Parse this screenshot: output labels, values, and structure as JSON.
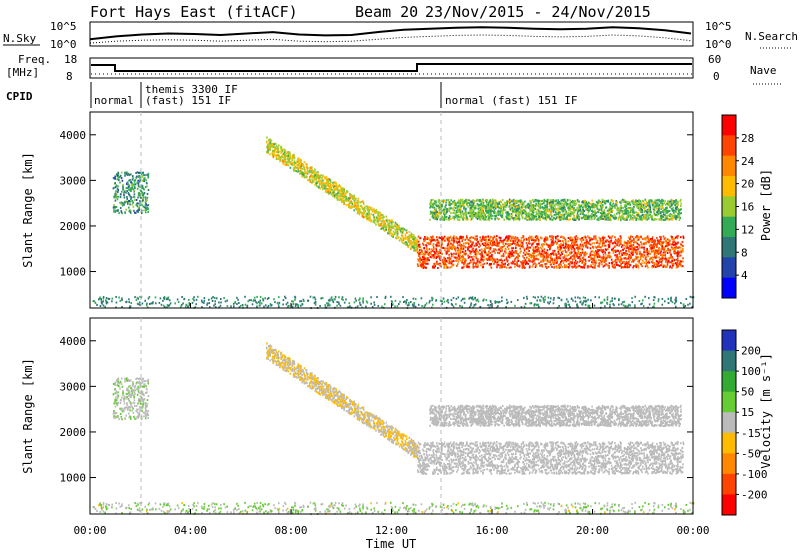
{
  "header": {
    "station": "Fort Hays East (fitACF)",
    "beam": "Beam 20",
    "dates": "23/Nov/2015 - 24/Nov/2015"
  },
  "noise_panel": {
    "left_label": "N.Sky",
    "left_ticks": [
      "10^5",
      "10^0"
    ],
    "right_ticks": [
      "10^5",
      "10^0"
    ],
    "right_label": "N.Search",
    "series": {
      "sky": [
        1.4,
        2.0,
        2.4,
        2.6,
        2.5,
        2.3,
        2.6,
        2.9,
        2.4,
        2.2,
        2.3,
        2.9,
        3.4,
        3.6,
        3.8,
        3.9,
        3.8,
        3.6,
        3.5,
        3.6,
        3.9,
        3.7,
        3.3,
        2.6
      ],
      "search": [
        0.6,
        1.0,
        1.2,
        1.3,
        1.2,
        1.0,
        1.2,
        1.4,
        1.0,
        0.9,
        1.0,
        1.4,
        1.8,
        2.0,
        2.2,
        2.3,
        2.2,
        2.0,
        1.9,
        2.0,
        2.3,
        2.1,
        1.7,
        1.1
      ]
    }
  },
  "freq_panel": {
    "left_label_1": "Freq.",
    "left_label_2": "[MHz]",
    "left_ticks": [
      "18",
      "8"
    ],
    "right_ticks": [
      "60",
      "0"
    ],
    "right_label": "Nave"
  },
  "cpid": {
    "label": "CPID",
    "segments": [
      "normal",
      "themis 3300 IF",
      "(fast) 151 IF",
      "normal (fast) 151 IF"
    ]
  },
  "panel_power": {
    "ylabel": "Slant Range [km]",
    "yticks": [
      "4000",
      "3000",
      "2000",
      "1000"
    ],
    "colorbar_label": "Power [dB]",
    "colorbar_ticks": [
      "28",
      "24",
      "20",
      "16",
      "12",
      "8",
      "4"
    ],
    "colors": [
      "#ff0000",
      "#ff4400",
      "#ff8800",
      "#ffbb00",
      "#99cc33",
      "#33aa55",
      "#2f7777",
      "#2244aa",
      "#0000ff"
    ]
  },
  "panel_velocity": {
    "ylabel": "Slant Range [km]",
    "yticks": [
      "4000",
      "3000",
      "2000",
      "1000"
    ],
    "colorbar_label": "Velocity [m s⁻¹]",
    "colorbar_ticks": [
      "200",
      "100",
      "50",
      "15",
      "-15",
      "-50",
      "-100",
      "-200"
    ],
    "colors": [
      "#2233bb",
      "#2f7777",
      "#33aa33",
      "#66cc33",
      "#bbbbbb",
      "#ffbb00",
      "#ff8800",
      "#ff4400",
      "#ff0000"
    ]
  },
  "xaxis": {
    "label": "Time UT",
    "ticks": [
      "00:00",
      "04:00",
      "08:00",
      "12:00",
      "16:00",
      "20:00",
      "00:00"
    ]
  },
  "chart_data": {
    "type": "heatmap",
    "x_range_hours": [
      0,
      24
    ],
    "y_range_km": [
      200,
      4500
    ],
    "panels": [
      "power",
      "velocity"
    ],
    "power_db_range": [
      0,
      32
    ],
    "velocity_range_m_s": [
      -250,
      250
    ],
    "scatter_features": [
      {
        "desc": "main echo band",
        "t_start": 13.0,
        "t_end": 23.6,
        "range_low_km": 1100,
        "range_high_km": 1800,
        "power_db": 28,
        "velocity_m_s": 0
      },
      {
        "desc": "upper echo band",
        "t_start": 13.5,
        "t_end": 23.5,
        "range_low_km": 2150,
        "range_high_km": 2600,
        "power_db": 14,
        "velocity_m_s": 0
      },
      {
        "desc": "descending arc",
        "t_start": 7.0,
        "t_end": 13.0,
        "range_start_km": 3800,
        "range_end_km": 1600,
        "power_db": 18,
        "velocity_m_s": -30
      },
      {
        "desc": "early patch",
        "t_start": 0.9,
        "t_end": 2.3,
        "range_low_km": 2300,
        "range_high_km": 3200,
        "power_db": 10,
        "velocity_m_s": 20
      }
    ]
  }
}
